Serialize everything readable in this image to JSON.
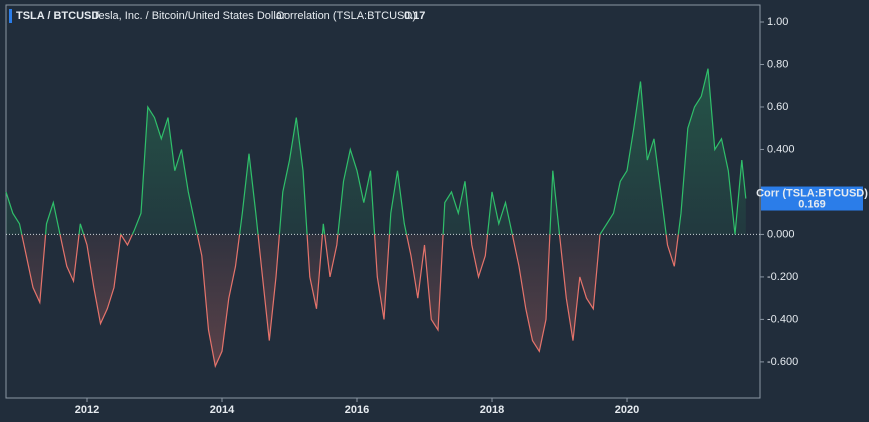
{
  "chart_data": {
    "type": "line",
    "title": "TSLA / BTCUSD",
    "subtitle": "Tesla, Inc. / Bitcoin/United States Dollar",
    "indicator": "Correlation (TSLA:BTCUSD)",
    "indicator_value": "0.17",
    "x": [
      2010.8,
      2010.9,
      2011.0,
      2011.1,
      2011.2,
      2011.3,
      2011.4,
      2011.5,
      2011.6,
      2011.7,
      2011.8,
      2011.9,
      2012.0,
      2012.1,
      2012.2,
      2012.3,
      2012.4,
      2012.5,
      2012.6,
      2012.7,
      2012.8,
      2012.9,
      2013.0,
      2013.1,
      2013.2,
      2013.3,
      2013.4,
      2013.5,
      2013.6,
      2013.7,
      2013.8,
      2013.9,
      2014.0,
      2014.1,
      2014.2,
      2014.3,
      2014.4,
      2014.5,
      2014.6,
      2014.7,
      2014.8,
      2014.9,
      2015.0,
      2015.1,
      2015.2,
      2015.3,
      2015.4,
      2015.5,
      2015.6,
      2015.7,
      2015.8,
      2015.9,
      2016.0,
      2016.1,
      2016.2,
      2016.3,
      2016.4,
      2016.5,
      2016.6,
      2016.7,
      2016.8,
      2016.9,
      2017.0,
      2017.1,
      2017.2,
      2017.3,
      2017.4,
      2017.5,
      2017.6,
      2017.7,
      2017.8,
      2017.9,
      2018.0,
      2018.1,
      2018.2,
      2018.3,
      2018.4,
      2018.5,
      2018.6,
      2018.7,
      2018.8,
      2018.9,
      2019.0,
      2019.1,
      2019.2,
      2019.3,
      2019.4,
      2019.5,
      2019.6,
      2019.7,
      2019.8,
      2019.9,
      2020.0,
      2020.1,
      2020.2,
      2020.3,
      2020.4,
      2020.5,
      2020.6,
      2020.7,
      2020.8,
      2020.9,
      2021.0,
      2021.1,
      2021.2,
      2021.3,
      2021.4,
      2021.5,
      2021.6,
      2021.7,
      2021.76
    ],
    "series": [
      {
        "name": "Corr (TSLA:BTCUSD)",
        "positive_color": "#2fbf6a",
        "negative_color": "#e5736b",
        "last_value_label": "0.169",
        "values": [
          0.2,
          0.1,
          0.05,
          -0.1,
          -0.25,
          -0.32,
          0.05,
          0.15,
          0.0,
          -0.15,
          -0.22,
          0.05,
          -0.05,
          -0.25,
          -0.42,
          -0.35,
          -0.25,
          0.0,
          -0.05,
          0.02,
          0.1,
          0.6,
          0.55,
          0.45,
          0.55,
          0.3,
          0.4,
          0.2,
          0.05,
          -0.1,
          -0.45,
          -0.62,
          -0.55,
          -0.3,
          -0.15,
          0.1,
          0.38,
          0.1,
          -0.2,
          -0.5,
          -0.2,
          0.2,
          0.35,
          0.55,
          0.3,
          -0.2,
          -0.35,
          0.05,
          -0.2,
          -0.05,
          0.25,
          0.4,
          0.3,
          0.15,
          0.3,
          -0.2,
          -0.4,
          0.1,
          0.3,
          0.05,
          -0.1,
          -0.3,
          -0.05,
          -0.4,
          -0.45,
          0.15,
          0.2,
          0.1,
          0.25,
          -0.05,
          -0.2,
          -0.1,
          0.2,
          0.05,
          0.15,
          0.0,
          -0.15,
          -0.35,
          -0.5,
          -0.55,
          -0.4,
          0.3,
          0.0,
          -0.3,
          -0.5,
          -0.2,
          -0.3,
          -0.35,
          0.0,
          0.05,
          0.1,
          0.25,
          0.3,
          0.5,
          0.72,
          0.35,
          0.45,
          0.2,
          -0.05,
          -0.15,
          0.1,
          0.5,
          0.6,
          0.65,
          0.78,
          0.4,
          0.45,
          0.3,
          0.0,
          0.35,
          0.169
        ]
      }
    ],
    "xlim": [
      2010.8,
      2021.97
    ],
    "xticks": [
      2012,
      2014,
      2016,
      2018,
      2020
    ],
    "ylim": [
      -0.77,
      1.08
    ],
    "yticks": [
      {
        "value": 1,
        "label": "1.00"
      },
      {
        "value": 0.8,
        "label": "0.80"
      },
      {
        "value": 0.6,
        "label": "0.60"
      },
      {
        "value": 0.4,
        "label": "0.400"
      },
      {
        "value": 0,
        "label": "0.000"
      },
      {
        "value": -0.2,
        "label": "-0.200"
      },
      {
        "value": -0.4,
        "label": "-0.400"
      },
      {
        "value": -0.6,
        "label": "-0.600"
      }
    ],
    "badge_color": "#2b7de9"
  }
}
